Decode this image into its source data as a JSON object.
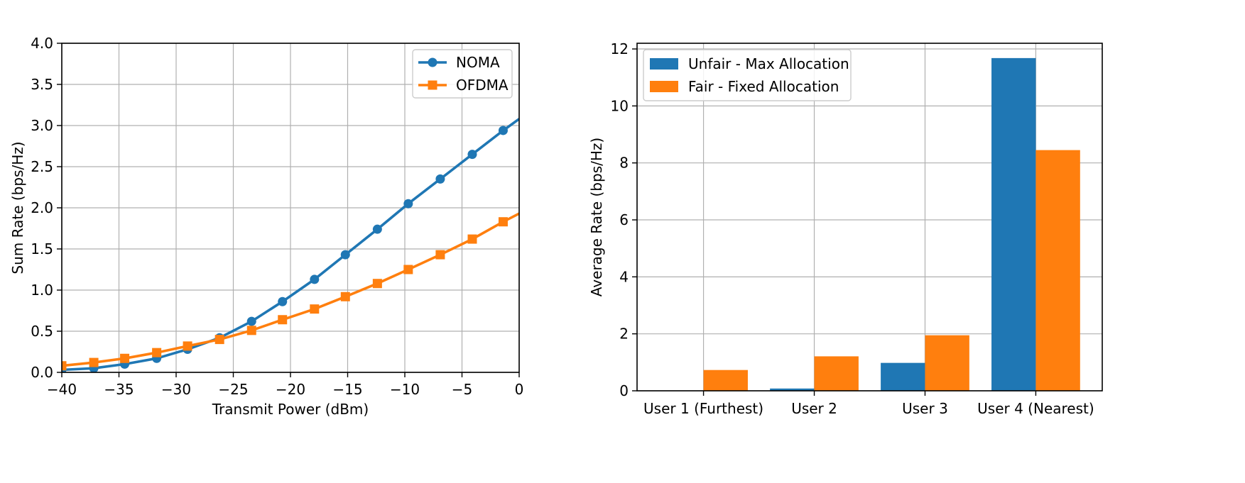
{
  "chart_data": [
    {
      "type": "line",
      "title": "",
      "xlabel": "Transmit Power (dBm)",
      "ylabel": "Sum Rate (bps/Hz)",
      "xlim": [
        -40,
        0
      ],
      "ylim": [
        0,
        4.0
      ],
      "xticks": [
        -40,
        -35,
        -30,
        -25,
        -20,
        -15,
        -10,
        -5,
        0
      ],
      "xtick_labels": [
        "−40",
        "−35",
        "−30",
        "−25",
        "−20",
        "−15",
        "−10",
        "−5",
        "0"
      ],
      "yticks": [
        0,
        0.5,
        1.0,
        1.5,
        2.0,
        2.5,
        3.0,
        3.5,
        4.0
      ],
      "ytick_labels": [
        "0.0",
        "0.5",
        "1.0",
        "1.5",
        "2.0",
        "2.5",
        "3.0",
        "3.5",
        "4.0"
      ],
      "grid": true,
      "legend": "top-right",
      "x": [
        -40,
        -37.2,
        -34.5,
        -31.7,
        -29.0,
        -26.2,
        -23.4,
        -20.7,
        -17.9,
        -15.2,
        -12.4,
        -9.7,
        -6.9,
        -4.1,
        -1.4,
        0
      ],
      "series": [
        {
          "name": "NOMA",
          "color": "#1f77b4",
          "marker": "circle",
          "values": [
            0.03,
            0.05,
            0.1,
            0.17,
            0.28,
            0.42,
            0.62,
            0.86,
            1.13,
            1.43,
            1.74,
            2.05,
            2.35,
            2.65,
            2.94,
            3.08
          ]
        },
        {
          "name": "OFDMA",
          "color": "#ff7f0e",
          "marker": "square",
          "values": [
            0.08,
            0.12,
            0.17,
            0.24,
            0.32,
            0.4,
            0.51,
            0.64,
            0.77,
            0.92,
            1.08,
            1.25,
            1.43,
            1.62,
            1.83,
            1.93
          ]
        }
      ]
    },
    {
      "type": "bar",
      "title": "",
      "xlabel": "",
      "ylabel": "Average Rate (bps/Hz)",
      "ylim": [
        0,
        12.2
      ],
      "yticks": [
        0,
        2,
        4,
        6,
        8,
        10,
        12
      ],
      "ytick_labels": [
        "0",
        "2",
        "4",
        "6",
        "8",
        "10",
        "12"
      ],
      "grid": true,
      "legend": "top-left",
      "categories": [
        "User 1 (Furthest)",
        "User 2",
        "User 3",
        "User 4 (Nearest)"
      ],
      "series": [
        {
          "name": "Unfair - Max Allocation",
          "color": "#1f77b4",
          "values": [
            0.0,
            0.08,
            0.98,
            11.68
          ]
        },
        {
          "name": "Fair - Fixed Allocation",
          "color": "#ff7f0e",
          "values": [
            0.73,
            1.21,
            1.95,
            8.45
          ]
        }
      ]
    }
  ]
}
